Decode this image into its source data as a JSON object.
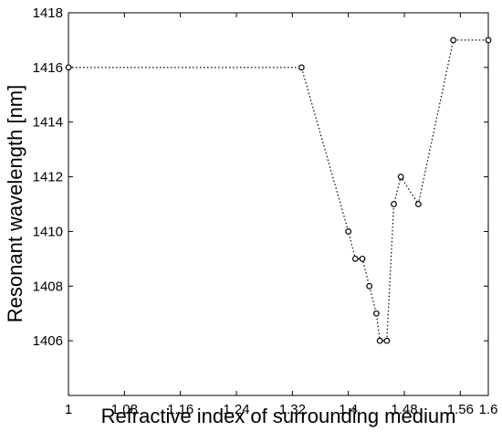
{
  "chart_data": {
    "type": "line",
    "xlabel": "Refractive index of surrounding medium",
    "ylabel": "Resonant wavelength [nm]",
    "xlim": [
      1,
      1.6
    ],
    "ylim": [
      1404,
      1418
    ],
    "x_ticks": [
      1,
      1.08,
      1.16,
      1.24,
      1.32,
      1.4,
      1.48,
      1.56,
      1.6
    ],
    "x_tick_labels": [
      "1",
      "1.08",
      "1.16",
      "1.24",
      "1.32",
      "1.4",
      "1.48",
      "1.56",
      "1.6"
    ],
    "y_ticks": [
      1406,
      1408,
      1410,
      1412,
      1414,
      1416,
      1418
    ],
    "y_tick_labels": [
      "1406",
      "1408",
      "1410",
      "1412",
      "1414",
      "1416",
      "1418"
    ],
    "grid": false,
    "line_style": "dotted",
    "marker": "open-circle",
    "color": "#000000",
    "series": [
      {
        "x": [
          1.0,
          1.333,
          1.4,
          1.41,
          1.42,
          1.43,
          1.44,
          1.445,
          1.455,
          1.465,
          1.475,
          1.5,
          1.55,
          1.6
        ],
        "y": [
          1416,
          1416,
          1410,
          1409,
          1409,
          1408,
          1407,
          1406,
          1406,
          1411,
          1412,
          1411,
          1417,
          1417
        ]
      }
    ]
  }
}
